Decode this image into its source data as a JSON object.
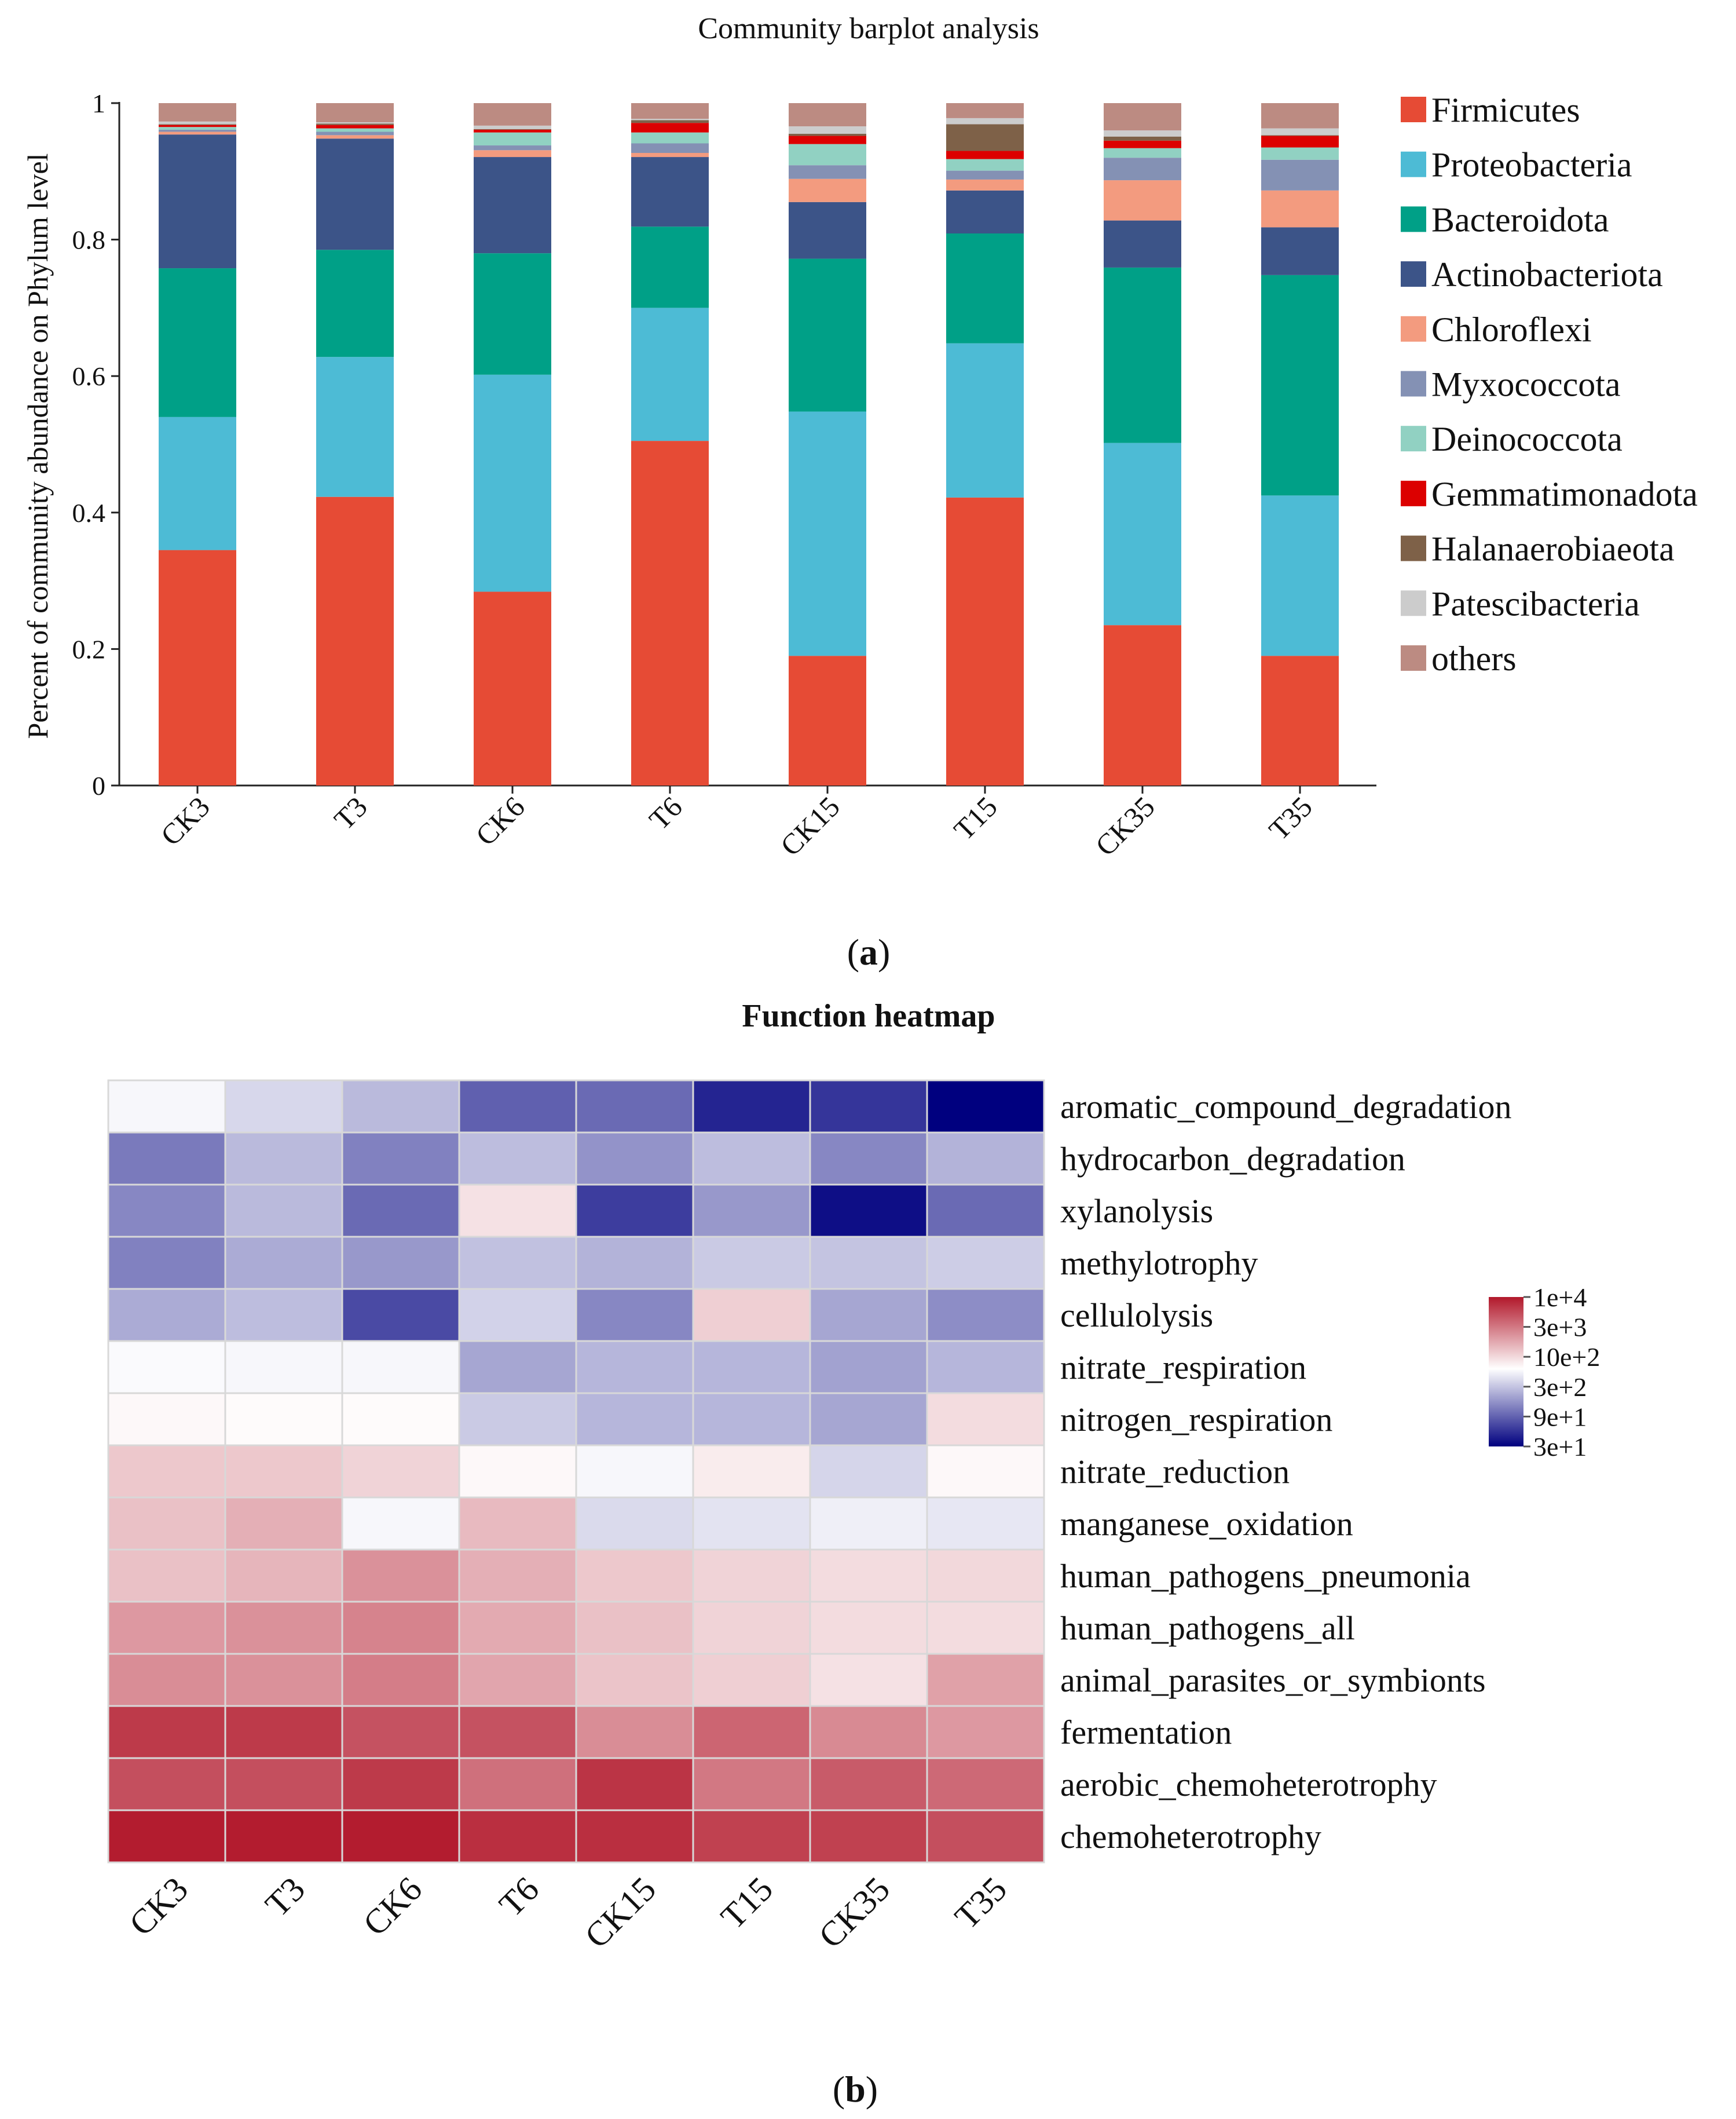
{
  "chart_data": [
    {
      "type": "bar",
      "stacked": true,
      "title": "Community barplot analysis",
      "xlabel": "",
      "ylabel": "Percent of community abundance on Phylum level",
      "ylim": [
        0,
        1
      ],
      "yticks": [
        "0",
        "0.2",
        "0.4",
        "0.6",
        "0.8",
        "1"
      ],
      "categories": [
        "CK3",
        "T3",
        "CK6",
        "T6",
        "CK15",
        "T15",
        "CK35",
        "T35"
      ],
      "legend_position": "right",
      "panel_label": "a",
      "series": [
        {
          "name": "Firmicutes",
          "color": "#E64B35",
          "values": [
            0.345,
            0.423,
            0.284,
            0.505,
            0.19,
            0.422,
            0.235,
            0.19
          ]
        },
        {
          "name": "Proteobacteria",
          "color": "#4DBBD5",
          "values": [
            0.195,
            0.205,
            0.318,
            0.195,
            0.358,
            0.226,
            0.267,
            0.235
          ]
        },
        {
          "name": "Bacteroidota",
          "color": "#00A087",
          "values": [
            0.218,
            0.157,
            0.178,
            0.119,
            0.224,
            0.161,
            0.257,
            0.323
          ]
        },
        {
          "name": "Actinobacteriota",
          "color": "#3C5488",
          "values": [
            0.196,
            0.163,
            0.141,
            0.102,
            0.083,
            0.063,
            0.069,
            0.07
          ]
        },
        {
          "name": "Chloroflexi",
          "color": "#F39B7F",
          "values": [
            0.004,
            0.005,
            0.01,
            0.006,
            0.034,
            0.016,
            0.059,
            0.054
          ]
        },
        {
          "name": "Myxococcota",
          "color": "#8491B4",
          "values": [
            0.003,
            0.005,
            0.007,
            0.014,
            0.02,
            0.013,
            0.033,
            0.045
          ]
        },
        {
          "name": "Deinococcota",
          "color": "#91D1C2",
          "values": [
            0.004,
            0.005,
            0.019,
            0.016,
            0.031,
            0.017,
            0.014,
            0.018
          ]
        },
        {
          "name": "Gemmatimonadota",
          "color": "#DC0000",
          "values": [
            0.003,
            0.005,
            0.004,
            0.014,
            0.012,
            0.012,
            0.011,
            0.017
          ]
        },
        {
          "name": "Halanaerobiaeota",
          "color": "#7E6148",
          "values": [
            0.001,
            0.002,
            0.001,
            0.004,
            0.003,
            0.039,
            0.006,
            0.001
          ]
        },
        {
          "name": "Patescibacteria",
          "color": "#CCCCCC",
          "values": [
            0.004,
            0.002,
            0.005,
            0.002,
            0.011,
            0.009,
            0.009,
            0.01
          ]
        },
        {
          "name": "others",
          "color": "#BC8B82",
          "values": [
            0.027,
            0.028,
            0.033,
            0.023,
            0.034,
            0.022,
            0.04,
            0.037
          ]
        }
      ]
    },
    {
      "type": "heatmap",
      "title": "Function heatmap",
      "panel_label": "b",
      "columns": [
        "CK3",
        "T3",
        "CK6",
        "T6",
        "CK15",
        "T15",
        "CK35",
        "T35"
      ],
      "rows": [
        "aromatic_compound_degradation",
        "hydrocarbon_degradation",
        "xylanolysis",
        "methylotrophy",
        "cellulolysis",
        "nitrate_respiration",
        "nitrogen_respiration",
        "nitrate_reduction",
        "manganese_oxidation",
        "human_pathogens_pneumonia",
        "human_pathogens_all",
        "animal_parasites_or_symbionts",
        "fermentation",
        "aerobic_chemoheterotrophy",
        "chemoheterotrophy"
      ],
      "values": [
        [
          500,
          350,
          250,
          90,
          100,
          45,
          55,
          30
        ],
        [
          120,
          250,
          130,
          260,
          160,
          260,
          140,
          230
        ],
        [
          140,
          250,
          100,
          800,
          60,
          170,
          35,
          100
        ],
        [
          130,
          210,
          170,
          270,
          230,
          300,
          280,
          310
        ],
        [
          210,
          260,
          70,
          330,
          140,
          1000,
          200,
          150
        ],
        [
          520,
          500,
          500,
          200,
          240,
          240,
          190,
          240
        ],
        [
          600,
          580,
          580,
          300,
          240,
          240,
          200,
          850
        ],
        [
          1100,
          1100,
          950,
          600,
          500,
          700,
          340,
          600
        ],
        [
          1200,
          1500,
          500,
          1300,
          360,
          400,
          460,
          420
        ],
        [
          1200,
          1400,
          2200,
          1500,
          1100,
          950,
          850,
          900
        ],
        [
          2000,
          2200,
          2600,
          1600,
          1200,
          950,
          850,
          850
        ],
        [
          2300,
          2200,
          2800,
          1700,
          1150,
          1000,
          800,
          1800
        ],
        [
          6500,
          6500,
          4800,
          4800,
          2300,
          3800,
          2400,
          2000
        ],
        [
          5000,
          5000,
          6500,
          3300,
          7000,
          3000,
          4300,
          3600
        ],
        [
          9500,
          9500,
          9500,
          7500,
          7500,
          6000,
          6000,
          5000
        ]
      ],
      "scale": "log",
      "color_low": "#00007F",
      "color_mid": "#FFFFFF",
      "color_high": "#B2182B",
      "value_range": [
        30,
        10000
      ],
      "midpoint": 550,
      "colorbar_ticks": [
        "1e+4",
        "3e+3",
        "10e+2",
        "3e+2",
        "9e+1",
        "3e+1"
      ],
      "colorbar_tick_values": [
        10000,
        3000,
        1000,
        300,
        90,
        30
      ]
    }
  ]
}
